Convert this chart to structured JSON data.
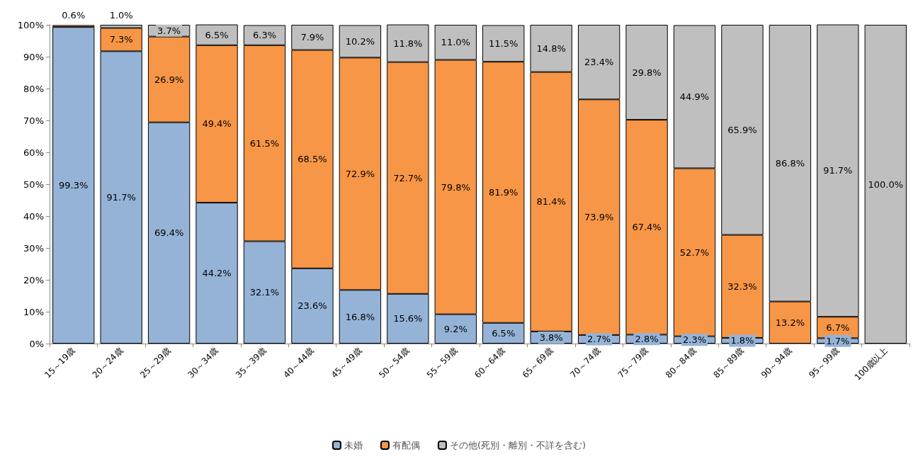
{
  "chart_data": {
    "type": "bar",
    "stacked": true,
    "categories": [
      "15～19歳",
      "20～24歳",
      "25～29歳",
      "30～34歳",
      "35～39歳",
      "40～44歳",
      "45～49歳",
      "50～54歳",
      "55～59歳",
      "60～64歳",
      "65～69歳",
      "70～74歳",
      "75～79歳",
      "80～84歳",
      "85～89歳",
      "90～94歳",
      "95～99歳",
      "100歳以上"
    ],
    "series": [
      {
        "name": "未婚",
        "color": "#95b3d7",
        "values": [
          99.3,
          91.7,
          69.4,
          44.2,
          32.1,
          23.6,
          16.8,
          15.6,
          9.2,
          6.5,
          3.8,
          2.7,
          2.8,
          2.3,
          1.8,
          null,
          1.7,
          null
        ],
        "value_labels": [
          "99.3%",
          "91.7%",
          "69.4%",
          "44.2%",
          "32.1%",
          "23.6%",
          "16.8%",
          "15.6%",
          "9.2%",
          "6.5%",
          "3.8%",
          "2.7%",
          "2.8%",
          "2.3%",
          "1.8%",
          null,
          "1.7%",
          null
        ]
      },
      {
        "name": "有配偶",
        "color": "#f79646",
        "values": [
          0.6,
          7.3,
          26.9,
          49.4,
          61.5,
          68.5,
          72.9,
          72.7,
          79.8,
          81.9,
          81.4,
          73.9,
          67.4,
          52.7,
          32.3,
          13.2,
          6.7,
          null
        ],
        "value_labels": [
          "0.6%",
          "7.3%",
          "26.9%",
          "49.4%",
          "61.5%",
          "68.5%",
          "72.9%",
          "72.7%",
          "79.8%",
          "81.9%",
          "81.4%",
          "73.9%",
          "67.4%",
          "52.7%",
          "32.3%",
          "13.2%",
          "6.7%",
          null
        ]
      },
      {
        "name": "その他(死別・離別・不詳を含む)",
        "color": "#bfbfbf",
        "values": [
          null,
          1.0,
          3.7,
          6.5,
          6.3,
          7.9,
          10.2,
          11.8,
          11.0,
          11.5,
          14.8,
          23.4,
          29.8,
          44.9,
          65.9,
          86.8,
          91.7,
          100.0
        ],
        "value_labels": [
          null,
          "1.0%",
          "3.7%",
          "6.5%",
          "6.3%",
          "7.9%",
          "10.2%",
          "11.8%",
          "11.0%",
          "11.5%",
          "14.8%",
          "23.4%",
          "29.8%",
          "44.9%",
          "65.9%",
          "86.8%",
          "91.7%",
          "100.0%"
        ]
      }
    ],
    "ylim": [
      0,
      100
    ],
    "yticks": [
      {
        "value": 0,
        "label": "0%"
      },
      {
        "value": 10,
        "label": "10%"
      },
      {
        "value": 20,
        "label": "20%"
      },
      {
        "value": 30,
        "label": "30%"
      },
      {
        "value": 40,
        "label": "40%"
      },
      {
        "value": 50,
        "label": "50%"
      },
      {
        "value": 60,
        "label": "60%"
      },
      {
        "value": 70,
        "label": "70%"
      },
      {
        "value": 80,
        "label": "80%"
      },
      {
        "value": 90,
        "label": "90%"
      },
      {
        "value": 100,
        "label": "100%"
      }
    ],
    "grid": false,
    "legend": "bottom"
  }
}
